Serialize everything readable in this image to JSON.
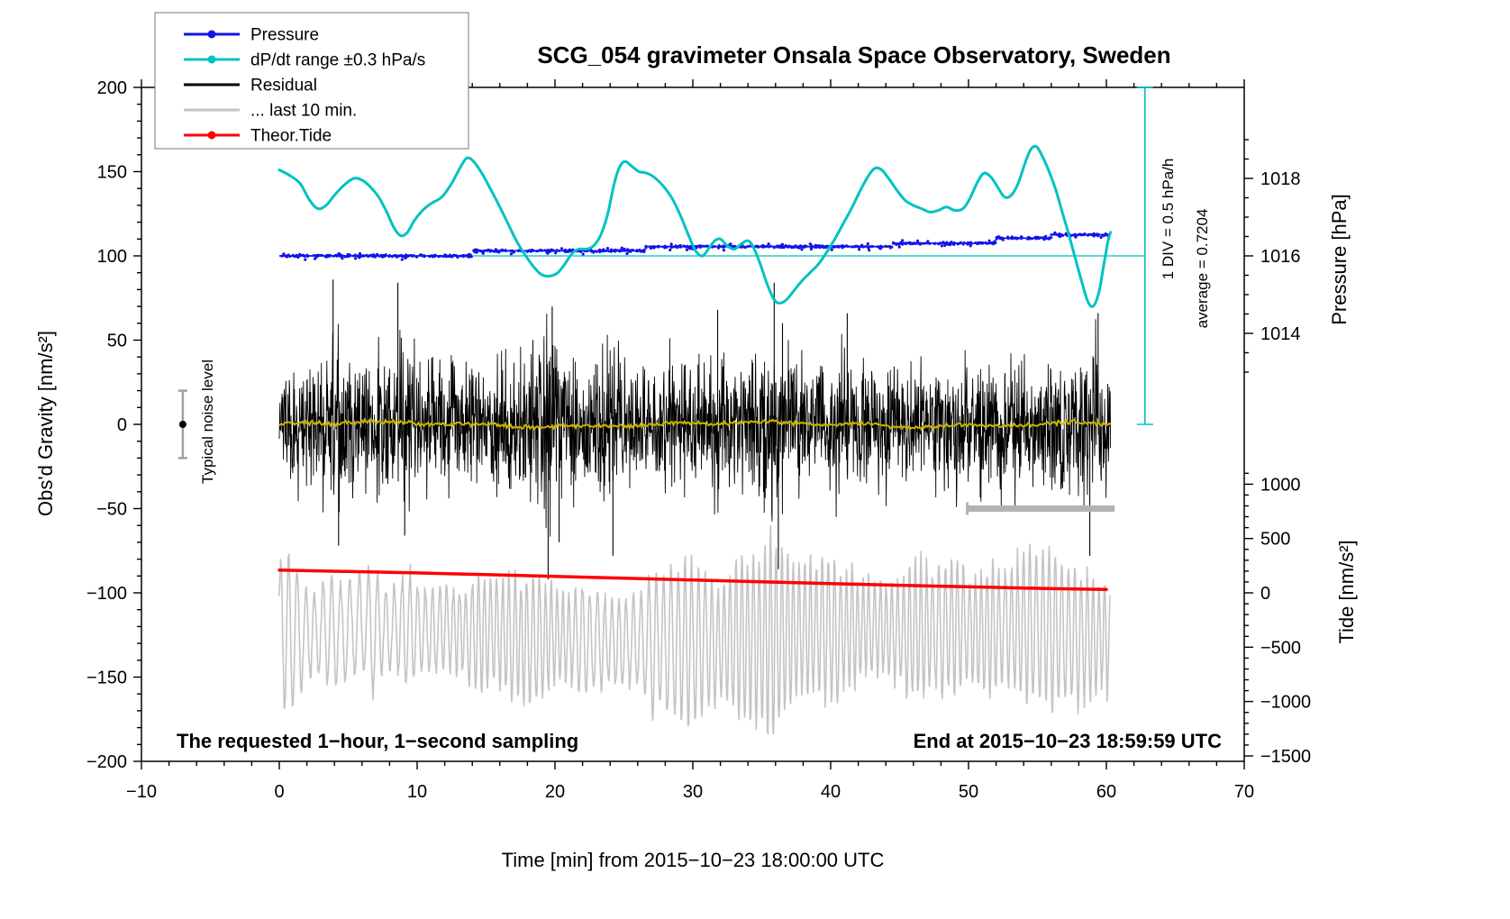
{
  "chart_data": {
    "type": "line",
    "title": "SCG_054 gravimeter Onsala Space Observatory, Sweden",
    "xlabel": "Time [min] from 2015−10−23 18:00:00 UTC",
    "ylabel_left": "Obs'd Gravity [nm/s²]",
    "ylabel_right_top": "Pressure [hPa]",
    "ylabel_right_bottom": "Tide [nm/s²]",
    "xlim": [
      -10,
      70
    ],
    "ylim": [
      -200,
      200
    ],
    "grid": false,
    "legend_position": "top-left",
    "colors": {
      "blue": "#1414e8",
      "cyan": "#00c2c2",
      "black": "#000000",
      "gray": "#c4c4c4",
      "red": "#ff0000",
      "yellow": "#c8b400",
      "bar_gray": "#b3b3b3",
      "err_gray": "#a0a0a0"
    },
    "x_axis": {
      "major": [
        {
          "v": -10,
          "label": "−10"
        },
        {
          "v": 0,
          "label": "0"
        },
        {
          "v": 10,
          "label": "10"
        },
        {
          "v": 20,
          "label": "20"
        },
        {
          "v": 30,
          "label": "30"
        },
        {
          "v": 40,
          "label": "40"
        },
        {
          "v": 50,
          "label": "50"
        },
        {
          "v": 60,
          "label": "60"
        },
        {
          "v": 70,
          "label": "70"
        }
      ],
      "minor_step": 2
    },
    "y_axis_left": {
      "major": [
        {
          "v": -200,
          "label": "−200"
        },
        {
          "v": -150,
          "label": "−150"
        },
        {
          "v": -100,
          "label": "−100"
        },
        {
          "v": -50,
          "label": "−50"
        },
        {
          "v": 0,
          "label": "0"
        },
        {
          "v": 50,
          "label": "50"
        },
        {
          "v": 100,
          "label": "100"
        },
        {
          "v": 150,
          "label": "150"
        },
        {
          "v": 200,
          "label": "200"
        }
      ],
      "minor_step": 10
    },
    "pressure_axis": {
      "note": "right axis, hPa mapped to gravity units: g = 100 + (hPa - 1016) * 23",
      "ticks": [
        {
          "hpa": 1014,
          "label": "1014",
          "g": 54
        },
        {
          "hpa": 1016,
          "label": "1016",
          "g": 100
        },
        {
          "hpa": 1018,
          "label": "1018",
          "g": 146
        }
      ],
      "minor_hpa_step": 0.5,
      "minor_range_hpa": [
        1013,
        1019
      ]
    },
    "tide_axis": {
      "note": "right axis, nm/s2 mapped to gravity units: g = -100 + v * 0.064516",
      "ticks": [
        {
          "v": 1000,
          "label": "1000"
        },
        {
          "v": 500,
          "label": "500"
        },
        {
          "v": 0,
          "label": "0"
        },
        {
          "v": -500,
          "label": "−500"
        },
        {
          "v": -1000,
          "label": "−1000"
        },
        {
          "v": -1500,
          "label": "−1500"
        }
      ],
      "minor_step": 100,
      "minor_range": [
        -1500,
        1100
      ],
      "scale": 0.064516,
      "offset": -100
    },
    "legend": [
      {
        "label": "Pressure",
        "color": "#1414e8",
        "dot": true
      },
      {
        "label": "dP/dt range ±0.3 hPa/s",
        "color": "#00c2c2",
        "dot": true
      },
      {
        "label": "Residual",
        "color": "#000000",
        "dot": false
      },
      {
        "label": "... last 10 min.",
        "color": "#c4c4c4",
        "dot": false
      },
      {
        "label": "Theor.Tide",
        "color": "#ff0000",
        "dot": true
      }
    ],
    "annotations": {
      "sampling_note": "The requested 1−hour, 1−second sampling",
      "end_note": "End at 2015−10−23 18:59:59 UTC",
      "div_note": "1 DIV = 0.5 hPa/h",
      "average_note": "average = 0.7204",
      "noise_note": "Typical noise level"
    },
    "markers": {
      "avg_line": {
        "y": 100,
        "x0": 0,
        "x1": 62.8
      },
      "scale_bar": {
        "x": 62.8,
        "y0": 0,
        "y1": 200,
        "cap": 9
      },
      "last10_bar": {
        "y": -50,
        "x0": 49.9,
        "x1": 60.6
      },
      "noise_marker": {
        "x": -7,
        "y": 0,
        "err": 20
      }
    },
    "series": [
      {
        "name": "Pressure",
        "style": "dotted-steps",
        "color": "#1414e8",
        "steps": [
          [
            0,
            14,
            100
          ],
          [
            14,
            26.5,
            103
          ],
          [
            26.5,
            44.5,
            105.5
          ],
          [
            44.5,
            52,
            107.5
          ],
          [
            52,
            56,
            110.5
          ],
          [
            56,
            60.3,
            112.5
          ]
        ]
      },
      {
        "name": "dP/dt range ±0.3 hPa/s",
        "style": "smooth-line",
        "color": "#00c2c2",
        "width": 3,
        "points": [
          [
            0,
            151
          ],
          [
            0.7,
            148
          ],
          [
            1.5,
            143
          ],
          [
            2.2,
            133
          ],
          [
            2.8,
            128
          ],
          [
            3.4,
            130
          ],
          [
            4,
            136
          ],
          [
            4.7,
            142
          ],
          [
            5.4,
            146
          ],
          [
            6,
            145
          ],
          [
            6.6,
            141
          ],
          [
            7.2,
            135
          ],
          [
            7.8,
            126
          ],
          [
            8.3,
            117
          ],
          [
            8.8,
            112
          ],
          [
            9.3,
            114
          ],
          [
            9.8,
            121
          ],
          [
            10.4,
            127
          ],
          [
            11,
            131
          ],
          [
            11.8,
            135
          ],
          [
            12.5,
            143
          ],
          [
            13.1,
            152
          ],
          [
            13.6,
            158
          ],
          [
            14.1,
            156
          ],
          [
            14.7,
            149
          ],
          [
            15.3,
            140
          ],
          [
            16,
            129
          ],
          [
            16.6,
            119
          ],
          [
            17.2,
            109
          ],
          [
            17.8,
            101
          ],
          [
            18.4,
            94
          ],
          [
            19,
            89
          ],
          [
            19.6,
            88
          ],
          [
            20.2,
            90
          ],
          [
            20.7,
            95
          ],
          [
            21.2,
            101
          ],
          [
            21.7,
            104
          ],
          [
            22.3,
            104
          ],
          [
            22.8,
            106
          ],
          [
            23.3,
            112
          ],
          [
            23.8,
            124
          ],
          [
            24.3,
            143
          ],
          [
            24.7,
            153
          ],
          [
            25.1,
            156
          ],
          [
            25.6,
            153
          ],
          [
            26.1,
            150
          ],
          [
            26.7,
            149
          ],
          [
            27.3,
            146
          ],
          [
            27.9,
            141
          ],
          [
            28.5,
            134
          ],
          [
            29.1,
            124
          ],
          [
            29.7,
            112
          ],
          [
            30.2,
            103
          ],
          [
            30.7,
            100
          ],
          [
            31.2,
            105
          ],
          [
            31.6,
            109
          ],
          [
            32,
            110
          ],
          [
            32.5,
            106
          ],
          [
            33,
            104
          ],
          [
            33.5,
            107
          ],
          [
            34,
            109
          ],
          [
            34.4,
            105
          ],
          [
            34.9,
            95
          ],
          [
            35.4,
            83
          ],
          [
            35.9,
            74
          ],
          [
            36.3,
            72
          ],
          [
            36.8,
            74
          ],
          [
            37.3,
            79
          ],
          [
            37.9,
            85
          ],
          [
            38.5,
            90
          ],
          [
            39.1,
            95
          ],
          [
            39.7,
            102
          ],
          [
            40.3,
            110
          ],
          [
            40.9,
            119
          ],
          [
            41.5,
            128
          ],
          [
            42.1,
            138
          ],
          [
            42.7,
            147
          ],
          [
            43.2,
            152
          ],
          [
            43.7,
            151
          ],
          [
            44.2,
            146
          ],
          [
            44.8,
            139
          ],
          [
            45.4,
            133
          ],
          [
            46,
            130
          ],
          [
            46.6,
            128
          ],
          [
            47.2,
            126
          ],
          [
            47.8,
            127
          ],
          [
            48.4,
            129
          ],
          [
            49,
            127
          ],
          [
            49.6,
            128
          ],
          [
            50.1,
            134
          ],
          [
            50.6,
            143
          ],
          [
            51.1,
            149
          ],
          [
            51.6,
            147
          ],
          [
            52.1,
            141
          ],
          [
            52.6,
            135
          ],
          [
            53.1,
            136
          ],
          [
            53.6,
            143
          ],
          [
            54.1,
            155
          ],
          [
            54.5,
            163
          ],
          [
            54.9,
            165
          ],
          [
            55.3,
            160
          ],
          [
            55.8,
            151
          ],
          [
            56.3,
            140
          ],
          [
            56.8,
            126
          ],
          [
            57.3,
            112
          ],
          [
            57.8,
            97
          ],
          [
            58.2,
            85
          ],
          [
            58.6,
            74
          ],
          [
            58.9,
            70
          ],
          [
            59.2,
            72
          ],
          [
            59.5,
            80
          ],
          [
            59.8,
            94
          ],
          [
            60.1,
            108
          ],
          [
            60.3,
            114
          ]
        ]
      },
      {
        "name": "Residual",
        "style": "noise",
        "color": "#000000",
        "x_range": [
          0,
          60.3
        ],
        "step": 0.025,
        "amp_scale": 0.62,
        "clamp": 96,
        "envelope": [
          [
            0,
            30
          ],
          [
            1,
            36
          ],
          [
            2,
            34
          ],
          [
            3,
            42
          ],
          [
            4,
            50
          ],
          [
            5,
            44
          ],
          [
            6,
            36
          ],
          [
            7,
            34
          ],
          [
            8,
            46
          ],
          [
            9,
            44
          ],
          [
            10,
            36
          ],
          [
            11,
            34
          ],
          [
            12,
            36
          ],
          [
            13,
            38
          ],
          [
            14,
            36
          ],
          [
            15,
            34
          ],
          [
            16,
            36
          ],
          [
            17,
            38
          ],
          [
            18,
            42
          ],
          [
            19,
            50
          ],
          [
            19.7,
            58
          ],
          [
            20.5,
            42
          ],
          [
            21,
            36
          ],
          [
            22,
            36
          ],
          [
            23,
            40
          ],
          [
            24,
            44
          ],
          [
            25,
            38
          ],
          [
            26,
            34
          ],
          [
            27,
            32
          ],
          [
            28,
            36
          ],
          [
            29,
            38
          ],
          [
            30,
            36
          ],
          [
            31,
            40
          ],
          [
            32,
            42
          ],
          [
            33,
            36
          ],
          [
            34,
            38
          ],
          [
            35,
            46
          ],
          [
            36,
            54
          ],
          [
            37,
            40
          ],
          [
            38,
            34
          ],
          [
            39,
            34
          ],
          [
            40,
            38
          ],
          [
            41,
            42
          ],
          [
            42,
            38
          ],
          [
            43,
            36
          ],
          [
            44,
            34
          ],
          [
            45,
            34
          ],
          [
            46,
            36
          ],
          [
            47,
            38
          ],
          [
            48,
            36
          ],
          [
            49,
            34
          ],
          [
            50,
            34
          ],
          [
            51,
            36
          ],
          [
            52,
            38
          ],
          [
            53,
            40
          ],
          [
            54,
            36
          ],
          [
            55,
            36
          ],
          [
            56,
            40
          ],
          [
            57,
            44
          ],
          [
            58,
            46
          ],
          [
            59,
            44
          ],
          [
            60.3,
            40
          ]
        ],
        "spikes": [
          [
            3.9,
            86
          ],
          [
            4.3,
            -72
          ],
          [
            8.6,
            84
          ],
          [
            9.1,
            -66
          ],
          [
            19.5,
            -92
          ],
          [
            19.8,
            70
          ],
          [
            20.3,
            -70
          ],
          [
            24.2,
            -78
          ],
          [
            31.8,
            68
          ],
          [
            35.9,
            84
          ],
          [
            36.2,
            -86
          ],
          [
            36.5,
            60
          ],
          [
            41.2,
            66
          ],
          [
            58.8,
            -78
          ],
          [
            59.4,
            66
          ]
        ]
      },
      {
        "name": "Residual smoothed",
        "style": "small-noise-line",
        "color": "#c8b400",
        "x_range": [
          0,
          60.3
        ],
        "step": 0.1,
        "base_amp": 1.2
      },
      {
        "name": "... last 10 min.",
        "style": "oscillation",
        "color": "#c4c4c4",
        "x_range": [
          0,
          60.3
        ],
        "step": 0.05,
        "center": -122,
        "amp_base": 42,
        "amp_min": 24,
        "amp_max": 60,
        "period_base": 0.62,
        "period_min": 0.4,
        "period_max": 0.95,
        "boost_window": [
          33,
          52
        ],
        "boost": 1.15,
        "clamp": [
          -184,
          -58
        ]
      },
      {
        "name": "Theor.Tide",
        "style": "line",
        "color": "#ff0000",
        "width": 3.5,
        "points": [
          [
            0,
            -86.5
          ],
          [
            5,
            -87.3
          ],
          [
            10,
            -88.2
          ],
          [
            15,
            -89.2
          ],
          [
            20,
            -90.2
          ],
          [
            25,
            -91.3
          ],
          [
            30,
            -92.4
          ],
          [
            35,
            -93.4
          ],
          [
            40,
            -94.5
          ],
          [
            45,
            -95.5
          ],
          [
            50,
            -96.4
          ],
          [
            55,
            -97.3
          ],
          [
            60,
            -98
          ]
        ]
      }
    ]
  }
}
